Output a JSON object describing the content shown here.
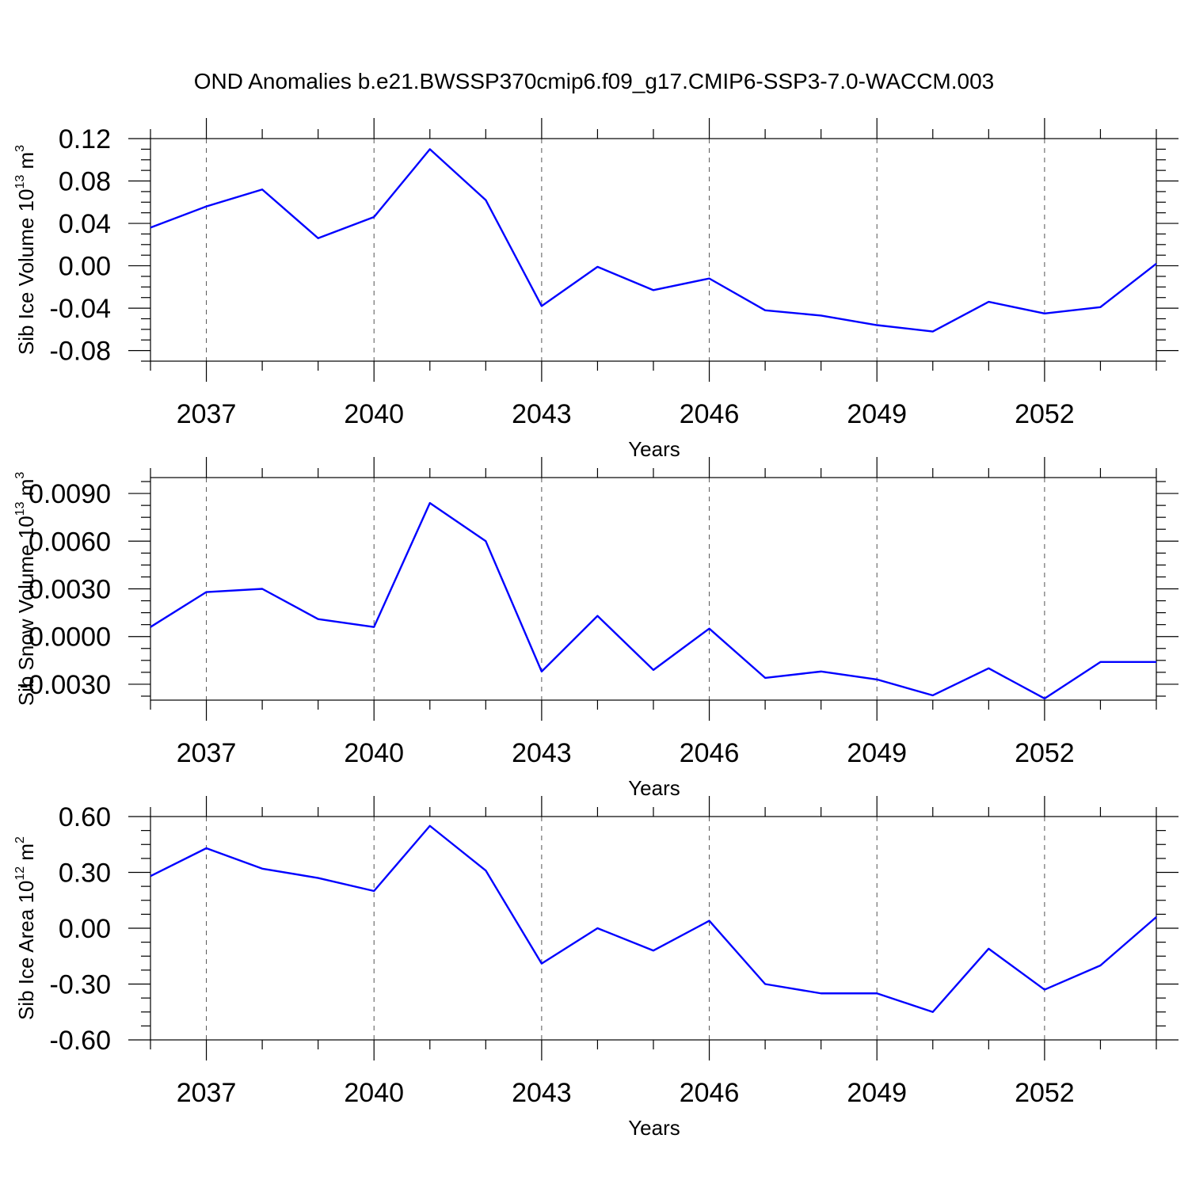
{
  "figure": {
    "title": "OND Anomalies b.e21.BWSSP370cmip6.f09_g17.CMIP6-SSP3-7.0-WACCM.003",
    "line_color": "#0000ff"
  },
  "chart_data": [
    {
      "type": "line",
      "ylabel": "Sib Ice Volume 10",
      "ylabel_exp": "13",
      "ylabel_unit": " m",
      "ylabel_unit_exp": "3",
      "xlabel": "Years",
      "xlim": [
        2036,
        2054
      ],
      "ylim": [
        -0.09,
        0.12
      ],
      "yticks": [
        0.12,
        0.08,
        0.04,
        0.0,
        -0.04,
        -0.08
      ],
      "ytick_labels": [
        "0.12",
        "0.08",
        "0.04",
        "0.00",
        "-0.04",
        "-0.08"
      ],
      "xticks": [
        2037,
        2040,
        2043,
        2046,
        2049,
        2052
      ],
      "xtick_labels": [
        "2037",
        "2040",
        "2043",
        "2046",
        "2049",
        "2052"
      ],
      "grid": "vertical dashed at major x ticks",
      "x": [
        2036,
        2037,
        2038,
        2039,
        2040,
        2041,
        2042,
        2043,
        2044,
        2045,
        2046,
        2047,
        2048,
        2049,
        2050,
        2051,
        2052,
        2053,
        2054
      ],
      "y": [
        0.036,
        0.056,
        0.072,
        0.026,
        0.046,
        0.11,
        0.062,
        -0.038,
        -0.001,
        -0.023,
        -0.012,
        -0.042,
        -0.047,
        -0.056,
        -0.062,
        -0.034,
        -0.045,
        -0.039,
        0.002
      ]
    },
    {
      "type": "line",
      "ylabel": "Sib Snow Volume 10",
      "ylabel_exp": "13",
      "ylabel_unit": " m",
      "ylabel_unit_exp": "3",
      "xlabel": "Years",
      "xlim": [
        2036,
        2054
      ],
      "ylim": [
        -0.004,
        0.01
      ],
      "yticks": [
        0.009,
        0.006,
        0.003,
        0.0,
        -0.003
      ],
      "ytick_labels": [
        "0.0090",
        "0.0060",
        "0.0030",
        "0.0000",
        "-0.0030"
      ],
      "xticks": [
        2037,
        2040,
        2043,
        2046,
        2049,
        2052
      ],
      "xtick_labels": [
        "2037",
        "2040",
        "2043",
        "2046",
        "2049",
        "2052"
      ],
      "grid": "vertical dashed at major x ticks",
      "x": [
        2036,
        2037,
        2038,
        2039,
        2040,
        2041,
        2042,
        2043,
        2044,
        2045,
        2046,
        2047,
        2048,
        2049,
        2050,
        2051,
        2052,
        2053,
        2054
      ],
      "y": [
        0.0006,
        0.0028,
        0.003,
        0.0011,
        0.0006,
        0.0084,
        0.006,
        -0.0022,
        0.0013,
        -0.0021,
        0.0005,
        -0.0026,
        -0.0022,
        -0.0027,
        -0.0037,
        -0.002,
        -0.0039,
        -0.0016,
        -0.0016
      ]
    },
    {
      "type": "line",
      "ylabel": "Sib Ice Area 10",
      "ylabel_exp": "12",
      "ylabel_unit": " m",
      "ylabel_unit_exp": "2",
      "xlabel": "Years",
      "xlim": [
        2036,
        2054
      ],
      "ylim": [
        -0.6,
        0.6
      ],
      "yticks": [
        0.6,
        0.3,
        0.0,
        -0.3,
        -0.6
      ],
      "ytick_labels": [
        "0.60",
        "0.30",
        "0.00",
        "-0.30",
        "-0.60"
      ],
      "xticks": [
        2037,
        2040,
        2043,
        2046,
        2049,
        2052
      ],
      "xtick_labels": [
        "2037",
        "2040",
        "2043",
        "2046",
        "2049",
        "2052"
      ],
      "grid": "vertical dashed at major x ticks",
      "x": [
        2036,
        2037,
        2038,
        2039,
        2040,
        2041,
        2042,
        2043,
        2044,
        2045,
        2046,
        2047,
        2048,
        2049,
        2050,
        2051,
        2052,
        2053,
        2054
      ],
      "y": [
        0.28,
        0.43,
        0.32,
        0.27,
        0.2,
        0.55,
        0.31,
        -0.19,
        0.0,
        -0.12,
        0.04,
        -0.3,
        -0.35,
        -0.35,
        -0.45,
        -0.11,
        -0.33,
        -0.2,
        0.06
      ]
    }
  ]
}
